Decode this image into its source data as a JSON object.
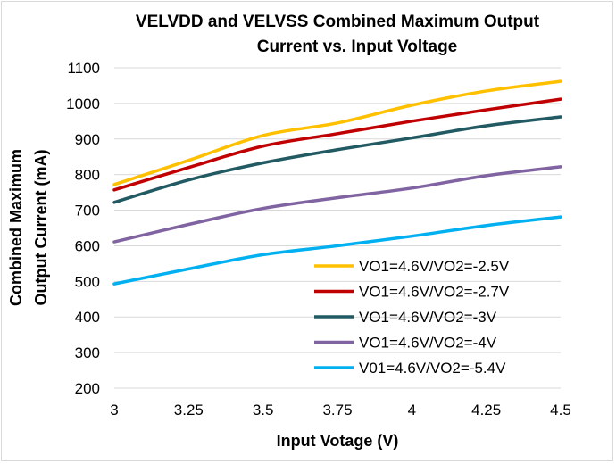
{
  "chart_data": {
    "type": "line",
    "title_lines": [
      "VELVDD and VELVSS Combined Maximum Output",
      "Current vs. Input Voltage"
    ],
    "xlabel": "Input Votage (V)",
    "ylabel_lines": [
      "Combined Maximum",
      "Output Current (mA)"
    ],
    "xlim": [
      3,
      4.5
    ],
    "ylim": [
      200,
      1100
    ],
    "xticks": [
      3,
      3.25,
      3.5,
      3.75,
      4,
      4.25,
      4.5
    ],
    "xtick_labels": [
      "3",
      "3.25",
      "3.5",
      "3.75",
      "4",
      "4.25",
      "4.5"
    ],
    "yticks": [
      200,
      300,
      400,
      500,
      600,
      700,
      800,
      900,
      1000,
      1100
    ],
    "ytick_labels": [
      "200",
      "300",
      "400",
      "500",
      "600",
      "700",
      "800",
      "900",
      "1000",
      "1100"
    ],
    "grid": "horizontal",
    "legend_position": "bottom-right",
    "x": [
      3,
      3.25,
      3.5,
      3.75,
      4,
      4.25,
      4.5
    ],
    "series": [
      {
        "name": "VO1=4.6V/VO2=-2.5V",
        "color": "#FFC000",
        "values": [
          772,
          840,
          910,
          945,
          995,
          1035,
          1062
        ]
      },
      {
        "name": "VO1=4.6V/VO2=-2.7V",
        "color": "#C00000",
        "values": [
          757,
          820,
          880,
          915,
          950,
          982,
          1012
        ]
      },
      {
        "name": "VO1=4.6V/VO2=-3V",
        "color": "#215A62",
        "values": [
          722,
          785,
          833,
          870,
          903,
          937,
          962
        ]
      },
      {
        "name": "VO1=4.6V/VO2=-4V",
        "color": "#8064A2",
        "values": [
          611,
          660,
          705,
          735,
          762,
          797,
          822
        ]
      },
      {
        "name": "V01=4.6V/VO2=-5.4V",
        "color": "#00B0F0",
        "values": [
          493,
          535,
          575,
          600,
          627,
          657,
          681
        ]
      }
    ]
  }
}
